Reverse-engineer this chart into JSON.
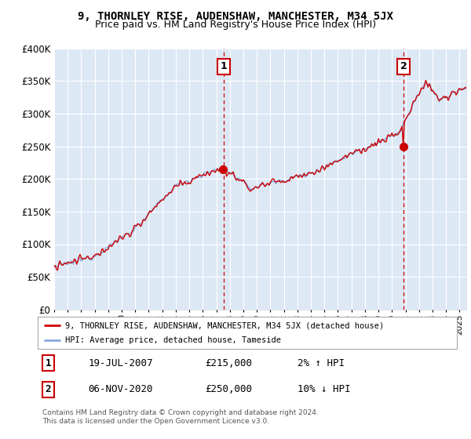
{
  "title": "9, THORNLEY RISE, AUDENSHAW, MANCHESTER, M34 5JX",
  "subtitle": "Price paid vs. HM Land Registry's House Price Index (HPI)",
  "legend_label_property": "9, THORNLEY RISE, AUDENSHAW, MANCHESTER, M34 5JX (detached house)",
  "legend_label_hpi": "HPI: Average price, detached house, Tameside",
  "footer": "Contains HM Land Registry data © Crown copyright and database right 2024.\nThis data is licensed under the Open Government Licence v3.0.",
  "annotation1_date": "19-JUL-2007",
  "annotation1_price": "£215,000",
  "annotation1_hpi": "2% ↑ HPI",
  "annotation2_date": "06-NOV-2020",
  "annotation2_price": "£250,000",
  "annotation2_hpi": "10% ↓ HPI",
  "marker1_year": 2007.54,
  "marker2_year": 2020.85,
  "marker1_value": 215000,
  "marker2_value": 250000,
  "property_color": "#cc0000",
  "hpi_color": "#88aadd",
  "dashed_line_color": "#cc0000",
  "plot_bg": "#dde8f5",
  "ylim": [
    0,
    400000
  ],
  "xlim_start": 1995.0,
  "xlim_end": 2025.5,
  "title_fontsize": 10,
  "subtitle_fontsize": 9
}
